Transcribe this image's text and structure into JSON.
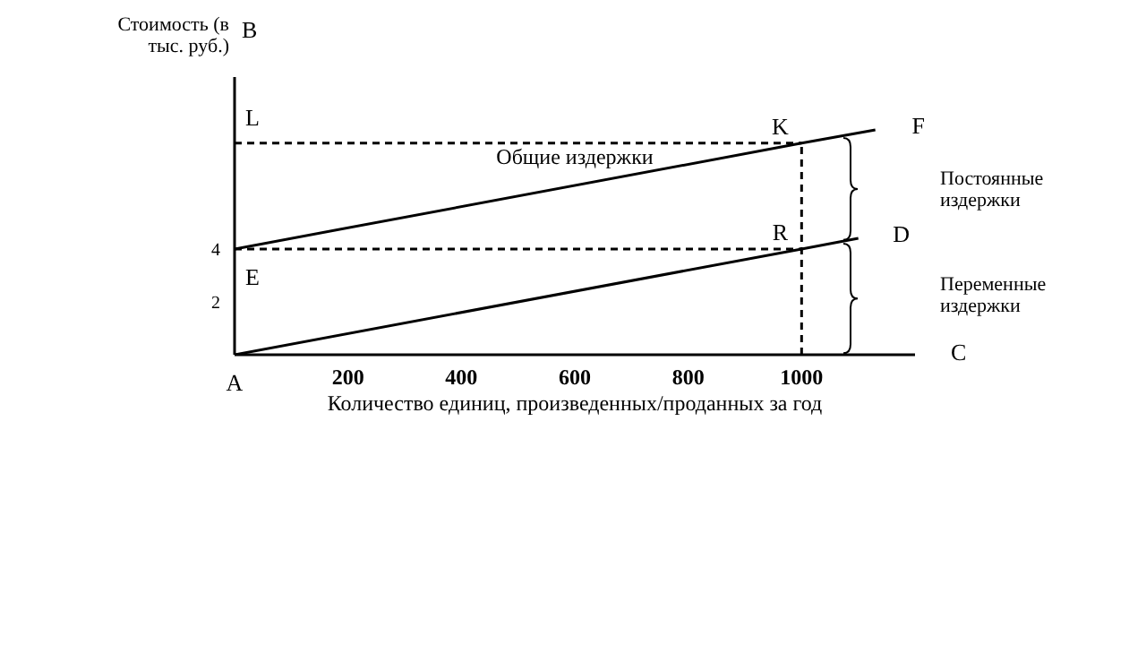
{
  "chart_data": {
    "type": "line",
    "xlabel": "Количество единиц, произведенных/проданных за год",
    "ylabel": "Стоимость (в тыс. руб.)",
    "xlim": [
      0,
      1200
    ],
    "xticks": [
      200,
      400,
      600,
      800,
      1000
    ],
    "ylim": [
      0,
      10.5
    ],
    "yticks": [
      2,
      4
    ],
    "marker": "none",
    "series": [
      {
        "name": "Общие издержки",
        "color": "#000000",
        "x": [
          0,
          1000,
          1130
        ],
        "values": [
          4,
          8,
          8.5
        ],
        "line_style": "solid"
      },
      {
        "color": "#000000",
        "x": [
          0,
          1000,
          1100
        ],
        "values": [
          0,
          4,
          4.4
        ],
        "line_style": "solid"
      },
      {
        "color": "#000000",
        "x": [
          0,
          1000
        ],
        "values": [
          8,
          8
        ],
        "line_style": "dashed"
      },
      {
        "color": "#000000",
        "x": [
          0,
          1000
        ],
        "values": [
          4,
          4
        ],
        "line_style": "dashed"
      },
      {
        "color": "#000000",
        "x": [
          1000,
          1000
        ],
        "values": [
          0,
          8
        ],
        "line_style": "dashed"
      }
    ],
    "annotations": [
      "B",
      "C",
      {
        "text": "A",
        "x": 0,
        "y": 0
      },
      {
        "text": "L",
        "x": 0,
        "y": 8
      },
      {
        "text": "K",
        "x": 1000,
        "y": 8
      },
      {
        "text": "F",
        "x": 1130,
        "y": 8.5
      },
      {
        "text": "E",
        "x": 0,
        "y": 4
      },
      {
        "text": "R",
        "x": 1000,
        "y": 4
      },
      {
        "text": "D",
        "x": 1100,
        "y": 4.4
      },
      "Постоянные издержки",
      "Переменные издержки"
    ]
  }
}
